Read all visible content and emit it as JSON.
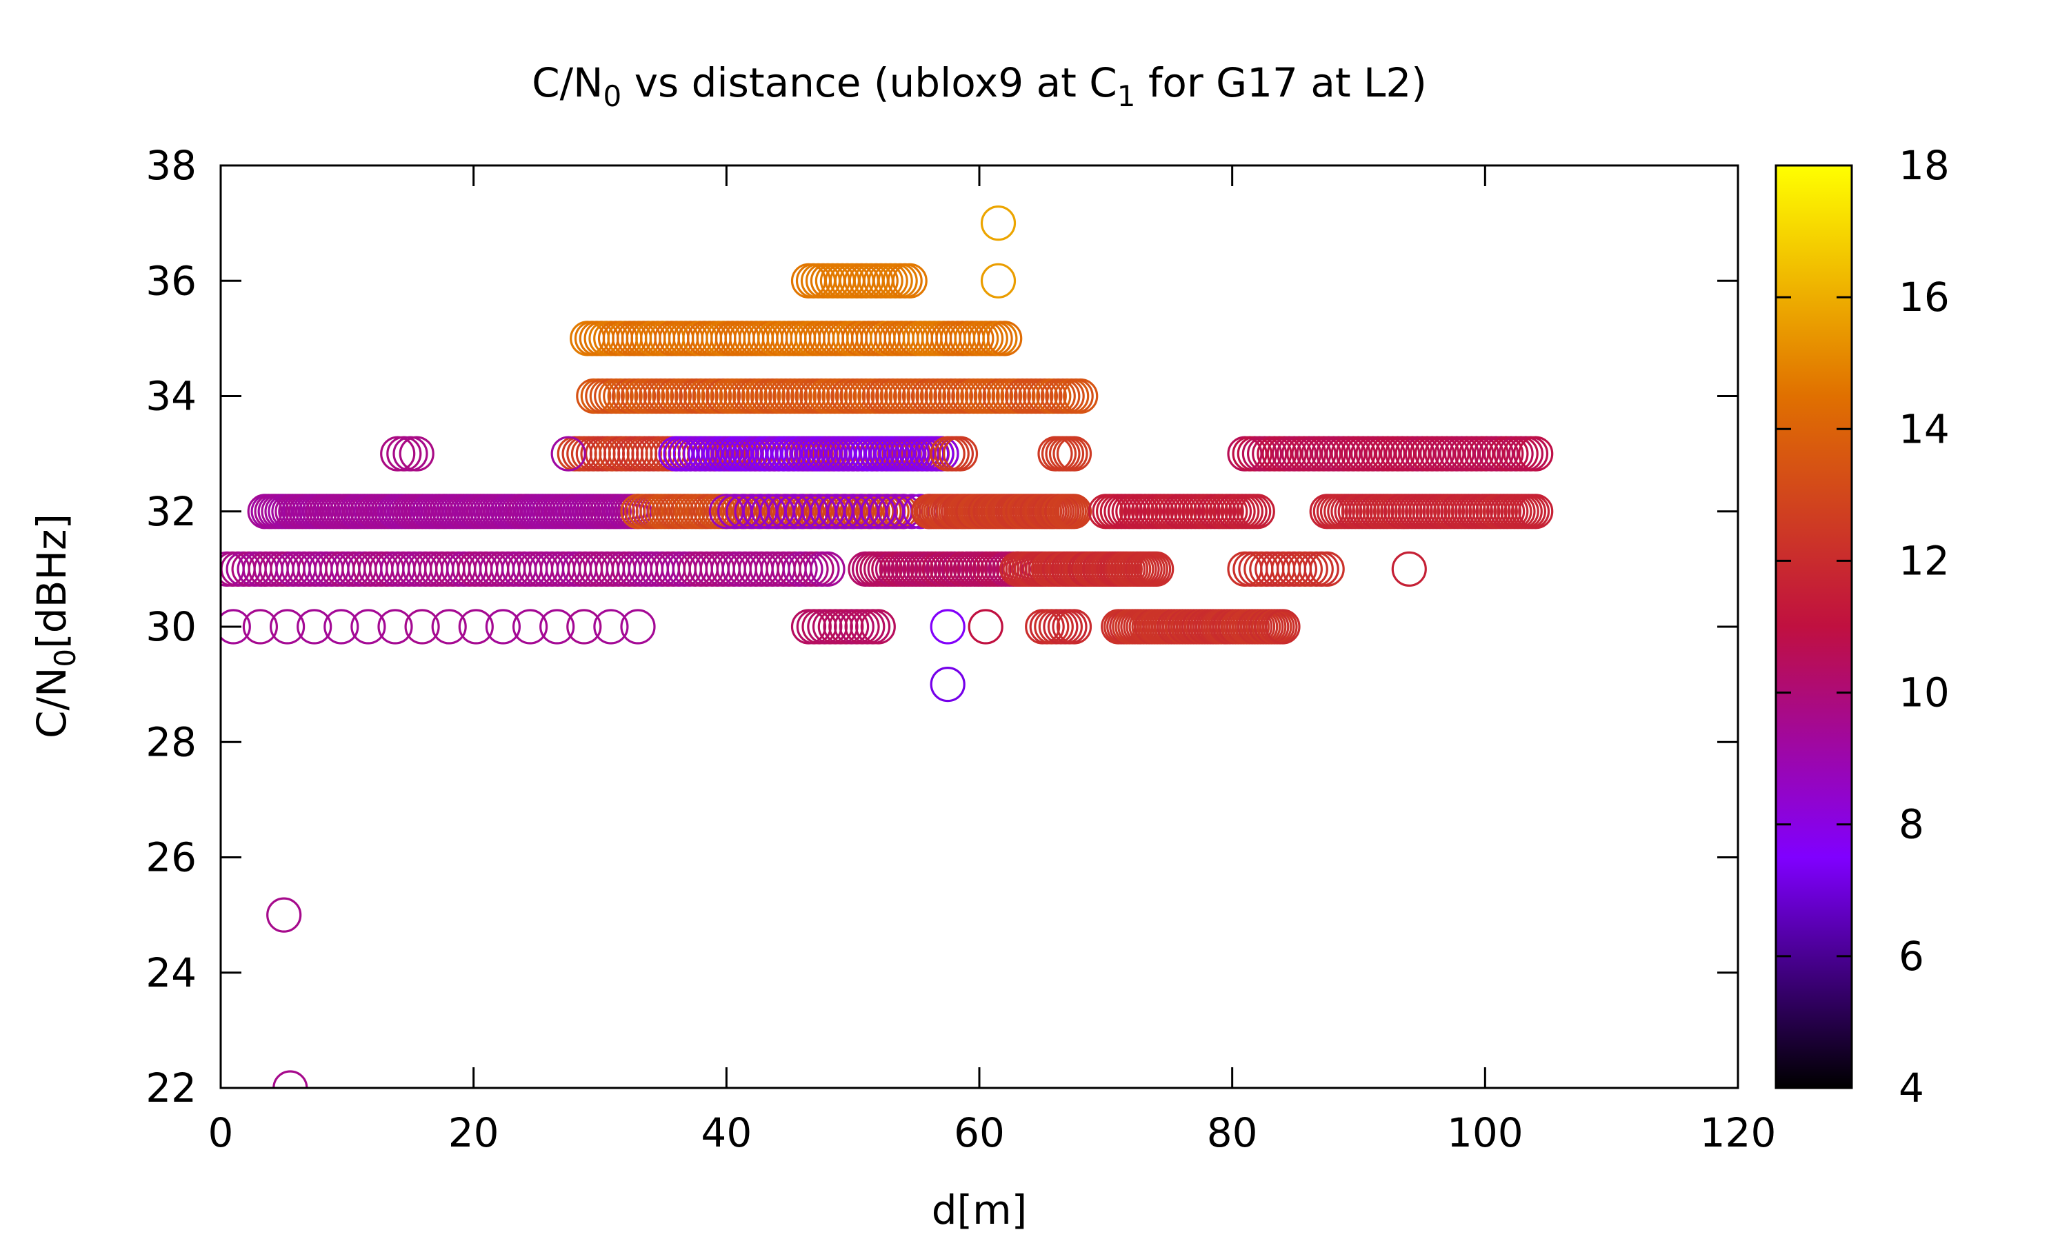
{
  "chart_data": {
    "type": "scatter",
    "title": {
      "main": "C/N",
      "main_sub": "0",
      "rest": " vs distance (ublox9 at C",
      "rest_sub": "1",
      "tail": " for G17 at L2)"
    },
    "xlabel": "d[m]",
    "ylabel": {
      "main": "C/N",
      "sub": "0",
      "rest": "[dBHz]"
    },
    "xlim": [
      0,
      120
    ],
    "ylim": [
      22,
      38
    ],
    "xticks": [
      "0",
      "20",
      "40",
      "60",
      "80",
      "100",
      "120"
    ],
    "yticks": [
      "22",
      "24",
      "26",
      "28",
      "30",
      "32",
      "34",
      "36",
      "38"
    ],
    "colorbar": {
      "range": [
        4,
        18
      ],
      "ticks": [
        "4",
        "6",
        "8",
        "10",
        "12",
        "14",
        "16",
        "18"
      ],
      "palette": [
        "#000000",
        "#8000ff",
        "#c01040",
        "#e07000",
        "#ffff00"
      ]
    },
    "marker": "open-circle",
    "legend": "none",
    "grid": false,
    "clusters": [
      {
        "y": 37,
        "x0": 61.5,
        "x1": 61.5,
        "n": 1,
        "c0": 15.8,
        "c1": 15.8
      },
      {
        "y": 36,
        "x0": 61.5,
        "x1": 61.5,
        "n": 1,
        "c0": 15.6,
        "c1": 15.6
      },
      {
        "y": 36,
        "x0": 46.5,
        "x1": 54.5,
        "n": 22,
        "c0": 14.6,
        "c1": 14.8
      },
      {
        "y": 35,
        "x0": 29,
        "x1": 62,
        "n": 90,
        "c0": 14.2,
        "c1": 14.8
      },
      {
        "y": 34,
        "x0": 29.5,
        "x1": 68,
        "n": 110,
        "c0": 13.2,
        "c1": 13.8
      },
      {
        "y": 33,
        "x0": 28,
        "x1": 57,
        "n": 80,
        "c0": 12.2,
        "c1": 12.8
      },
      {
        "y": 33,
        "x0": 36,
        "x1": 57,
        "n": 55,
        "c0": 7.6,
        "c1": 8.2
      },
      {
        "y": 33,
        "x0": 57.5,
        "x1": 58.5,
        "n": 4,
        "c0": 12.4,
        "c1": 12.6
      },
      {
        "y": 33,
        "x0": 66,
        "x1": 67.5,
        "n": 6,
        "c0": 12.4,
        "c1": 12.6
      },
      {
        "y": 33,
        "x0": 14,
        "x1": 15.5,
        "n": 4,
        "c0": 9.6,
        "c1": 9.8
      },
      {
        "y": 33,
        "x0": 27.5,
        "x1": 28,
        "n": 1,
        "c0": 9.2,
        "c1": 9.2
      },
      {
        "y": 33,
        "x0": 81,
        "x1": 104,
        "n": 60,
        "c0": 10.6,
        "c1": 10.9
      },
      {
        "y": 32,
        "x0": 3.5,
        "x1": 33,
        "n": 110,
        "c0": 9.2,
        "c1": 9.5
      },
      {
        "y": 32,
        "x0": 33,
        "x1": 54,
        "n": 70,
        "c0": 12.8,
        "c1": 13.4
      },
      {
        "y": 32,
        "x0": 40,
        "x1": 56,
        "n": 25,
        "c0": 8.4,
        "c1": 8.8
      },
      {
        "y": 32,
        "x0": 56,
        "x1": 67.5,
        "n": 60,
        "c0": 12.4,
        "c1": 12.8
      },
      {
        "y": 32,
        "x0": 70,
        "x1": 82,
        "n": 40,
        "c0": 11.2,
        "c1": 11.6
      },
      {
        "y": 32,
        "x0": 87.5,
        "x1": 104,
        "n": 60,
        "c0": 11.6,
        "c1": 11.9
      },
      {
        "y": 31,
        "x0": 0.5,
        "x1": 48,
        "n": 110,
        "c0": 9.4,
        "c1": 9.9
      },
      {
        "y": 31,
        "x0": 51,
        "x1": 63,
        "n": 40,
        "c0": 10.2,
        "c1": 10.6
      },
      {
        "y": 31,
        "x0": 63,
        "x1": 74,
        "n": 50,
        "c0": 11.8,
        "c1": 12.2
      },
      {
        "y": 31,
        "x0": 81,
        "x1": 87.5,
        "n": 16,
        "c0": 12.0,
        "c1": 12.3
      },
      {
        "y": 31,
        "x0": 94,
        "x1": 94,
        "n": 1,
        "c0": 11.6,
        "c1": 11.6
      },
      {
        "y": 30,
        "x0": 1,
        "x1": 33,
        "n": 16,
        "c0": 9.4,
        "c1": 9.6
      },
      {
        "y": 30,
        "x0": 46.5,
        "x1": 52,
        "n": 14,
        "c0": 10.3,
        "c1": 10.5
      },
      {
        "y": 30,
        "x0": 57.5,
        "x1": 57.5,
        "n": 1,
        "c0": 7.6,
        "c1": 7.6
      },
      {
        "y": 30,
        "x0": 60.5,
        "x1": 60.5,
        "n": 1,
        "c0": 11.0,
        "c1": 11.0
      },
      {
        "y": 30,
        "x0": 65,
        "x1": 67.5,
        "n": 8,
        "c0": 11.8,
        "c1": 12.2
      },
      {
        "y": 30,
        "x0": 71,
        "x1": 84,
        "n": 60,
        "c0": 12.0,
        "c1": 12.4
      },
      {
        "y": 29,
        "x0": 57.5,
        "x1": 57.5,
        "n": 1,
        "c0": 7.2,
        "c1": 7.2
      },
      {
        "y": 25,
        "x0": 5,
        "x1": 5,
        "n": 1,
        "c0": 9.6,
        "c1": 9.6
      },
      {
        "y": 22,
        "x0": 5.5,
        "x1": 5.5,
        "n": 1,
        "c0": 9.6,
        "c1": 9.6
      }
    ]
  }
}
